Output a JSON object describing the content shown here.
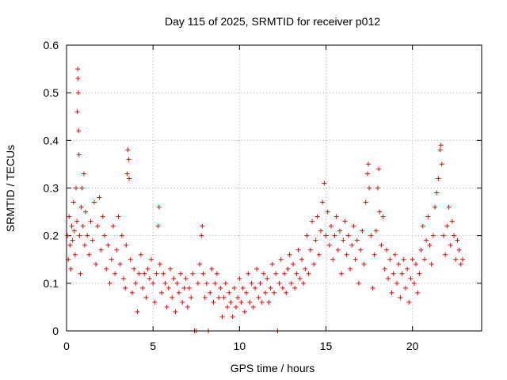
{
  "chart_data": {
    "type": "scatter",
    "title": "Day 115 of 2025, SRMTID for receiver p012",
    "xlabel": "GPS time / hours",
    "ylabel": "SRMTID / TECUs",
    "xlim": [
      0,
      24
    ],
    "ylim": [
      0,
      0.6
    ],
    "xticks": [
      0,
      5,
      10,
      15,
      20
    ],
    "yticks": [
      0,
      0.1,
      0.2,
      0.3,
      0.4,
      0.5,
      0.6
    ],
    "xtick_labels": [
      "0",
      "5",
      "10",
      "15",
      "20"
    ],
    "ytick_labels": [
      "0",
      "0.1",
      "0.2",
      "0.3",
      "0.4",
      "0.5",
      "0.6"
    ],
    "grid": true,
    "marker": "+",
    "color": "#ff0000",
    "series": [
      {
        "name": "SRMTID",
        "points": [
          [
            0.05,
            0.2
          ],
          [
            0.1,
            0.15
          ],
          [
            0.15,
            0.24
          ],
          [
            0.2,
            0.18
          ],
          [
            0.25,
            0.13
          ],
          [
            0.3,
            0.22
          ],
          [
            0.35,
            0.19
          ],
          [
            0.4,
            0.27
          ],
          [
            0.45,
            0.21
          ],
          [
            0.5,
            0.16
          ],
          [
            0.55,
            0.3
          ],
          [
            0.6,
            0.23
          ],
          [
            0.62,
            0.46
          ],
          [
            0.65,
            0.55
          ],
          [
            0.66,
            0.53
          ],
          [
            0.68,
            0.5
          ],
          [
            0.7,
            0.42
          ],
          [
            0.72,
            0.37
          ],
          [
            0.75,
            0.2
          ],
          [
            0.8,
            0.12
          ],
          [
            0.85,
            0.26
          ],
          [
            0.9,
            0.3
          ],
          [
            0.95,
            0.22
          ],
          [
            1.0,
            0.33
          ],
          [
            1.05,
            0.18
          ],
          [
            1.1,
            0.25
          ],
          [
            1.2,
            0.2
          ],
          [
            1.3,
            0.16
          ],
          [
            1.4,
            0.23
          ],
          [
            1.5,
            0.19
          ],
          [
            1.6,
            0.27
          ],
          [
            1.7,
            0.14
          ],
          [
            1.8,
            0.22
          ],
          [
            1.9,
            0.28
          ],
          [
            2.0,
            0.17
          ],
          [
            2.1,
            0.24
          ],
          [
            2.2,
            0.2
          ],
          [
            2.3,
            0.13
          ],
          [
            2.4,
            0.18
          ],
          [
            2.5,
            0.1
          ],
          [
            2.6,
            0.15
          ],
          [
            2.7,
            0.22
          ],
          [
            2.8,
            0.12
          ],
          [
            2.9,
            0.17
          ],
          [
            3.0,
            0.24
          ],
          [
            3.1,
            0.14
          ],
          [
            3.2,
            0.2
          ],
          [
            3.3,
            0.11
          ],
          [
            3.4,
            0.09
          ],
          [
            3.45,
            0.18
          ],
          [
            3.5,
            0.33
          ],
          [
            3.55,
            0.38
          ],
          [
            3.6,
            0.36
          ],
          [
            3.62,
            0.32
          ],
          [
            3.7,
            0.15
          ],
          [
            3.8,
            0.08
          ],
          [
            3.9,
            0.13
          ],
          [
            4.0,
            0.1
          ],
          [
            4.1,
            0.04
          ],
          [
            4.2,
            0.12
          ],
          [
            4.3,
            0.16
          ],
          [
            4.4,
            0.09
          ],
          [
            4.5,
            0.12
          ],
          [
            4.6,
            0.07
          ],
          [
            4.7,
            0.13
          ],
          [
            4.8,
            0.11
          ],
          [
            4.9,
            0.15
          ],
          [
            5.0,
            0.1
          ],
          [
            5.1,
            0.06
          ],
          [
            5.2,
            0.12
          ],
          [
            5.3,
            0.22
          ],
          [
            5.35,
            0.26
          ],
          [
            5.4,
            0.14
          ],
          [
            5.5,
            0.08
          ],
          [
            5.6,
            0.12
          ],
          [
            5.7,
            0.1
          ],
          [
            5.8,
            0.05
          ],
          [
            5.9,
            0.09
          ],
          [
            6.0,
            0.13
          ],
          [
            6.1,
            0.07
          ],
          [
            6.2,
            0.11
          ],
          [
            6.3,
            0.04
          ],
          [
            6.4,
            0.1
          ],
          [
            6.5,
            0.08
          ],
          [
            6.6,
            0.12
          ],
          [
            6.7,
            0.06
          ],
          [
            6.8,
            0.09
          ],
          [
            6.9,
            0.11
          ],
          [
            7.0,
            0.05
          ],
          [
            7.1,
            0.09
          ],
          [
            7.2,
            0.07
          ],
          [
            7.3,
            0.12
          ],
          [
            7.4,
            0.0
          ],
          [
            7.5,
            0.0
          ],
          [
            7.6,
            0.1
          ],
          [
            7.7,
            0.14
          ],
          [
            7.8,
            0.2
          ],
          [
            7.85,
            0.22
          ],
          [
            7.9,
            0.12
          ],
          [
            8.0,
            0.07
          ],
          [
            8.1,
            0.1
          ],
          [
            8.2,
            0.0
          ],
          [
            8.3,
            0.08
          ],
          [
            8.4,
            0.13
          ],
          [
            8.5,
            0.06
          ],
          [
            8.6,
            0.1
          ],
          [
            8.7,
            0.12
          ],
          [
            8.8,
            0.07
          ],
          [
            8.9,
            0.09
          ],
          [
            9.0,
            0.03
          ],
          [
            9.1,
            0.07
          ],
          [
            9.2,
            0.1
          ],
          [
            9.3,
            0.05
          ],
          [
            9.4,
            0.08
          ],
          [
            9.5,
            0.06
          ],
          [
            9.6,
            0.03
          ],
          [
            9.7,
            0.09
          ],
          [
            9.8,
            0.05
          ],
          [
            9.9,
            0.07
          ],
          [
            10.0,
            0.11
          ],
          [
            10.1,
            0.06
          ],
          [
            10.2,
            0.09
          ],
          [
            10.3,
            0.04
          ],
          [
            10.4,
            0.08
          ],
          [
            10.5,
            0.12
          ],
          [
            10.6,
            0.06
          ],
          [
            10.7,
            0.1
          ],
          [
            10.8,
            0.05
          ],
          [
            10.9,
            0.09
          ],
          [
            11.0,
            0.13
          ],
          [
            11.1,
            0.07
          ],
          [
            11.2,
            0.1
          ],
          [
            11.3,
            0.06
          ],
          [
            11.4,
            0.12
          ],
          [
            11.5,
            0.08
          ],
          [
            11.6,
            0.11
          ],
          [
            11.7,
            0.06
          ],
          [
            11.8,
            0.09
          ],
          [
            11.9,
            0.14
          ],
          [
            12.0,
            0.08
          ],
          [
            12.1,
            0.12
          ],
          [
            12.2,
            0.0
          ],
          [
            12.3,
            0.1
          ],
          [
            12.4,
            0.15
          ],
          [
            12.5,
            0.09
          ],
          [
            12.6,
            0.12
          ],
          [
            12.7,
            0.08
          ],
          [
            12.8,
            0.13
          ],
          [
            12.9,
            0.16
          ],
          [
            13.0,
            0.1
          ],
          [
            13.1,
            0.14
          ],
          [
            13.2,
            0.09
          ],
          [
            13.3,
            0.12
          ],
          [
            13.4,
            0.17
          ],
          [
            13.5,
            0.11
          ],
          [
            13.6,
            0.15
          ],
          [
            13.7,
            0.1
          ],
          [
            13.8,
            0.13
          ],
          [
            13.9,
            0.2
          ],
          [
            14.0,
            0.12
          ],
          [
            14.1,
            0.17
          ],
          [
            14.2,
            0.23
          ],
          [
            14.3,
            0.14
          ],
          [
            14.4,
            0.19
          ],
          [
            14.5,
            0.24
          ],
          [
            14.6,
            0.16
          ],
          [
            14.7,
            0.21
          ],
          [
            14.8,
            0.27
          ],
          [
            14.9,
            0.31
          ],
          [
            15.0,
            0.2
          ],
          [
            15.1,
            0.25
          ],
          [
            15.2,
            0.18
          ],
          [
            15.3,
            0.22
          ],
          [
            15.4,
            0.15
          ],
          [
            15.5,
            0.2
          ],
          [
            15.6,
            0.24
          ],
          [
            15.7,
            0.17
          ],
          [
            15.8,
            0.21
          ],
          [
            15.9,
            0.12
          ],
          [
            16.0,
            0.19
          ],
          [
            16.1,
            0.23
          ],
          [
            16.2,
            0.16
          ],
          [
            16.3,
            0.2
          ],
          [
            16.4,
            0.13
          ],
          [
            16.5,
            0.18
          ],
          [
            16.6,
            0.22
          ],
          [
            16.7,
            0.15
          ],
          [
            16.8,
            0.19
          ],
          [
            16.9,
            0.1
          ],
          [
            17.0,
            0.17
          ],
          [
            17.1,
            0.21
          ],
          [
            17.2,
            0.14
          ],
          [
            17.3,
            0.27
          ],
          [
            17.4,
            0.33
          ],
          [
            17.45,
            0.35
          ],
          [
            17.5,
            0.3
          ],
          [
            17.6,
            0.2
          ],
          [
            17.7,
            0.09
          ],
          [
            17.8,
            0.16
          ],
          [
            17.9,
            0.21
          ],
          [
            18.0,
            0.3
          ],
          [
            18.05,
            0.34
          ],
          [
            18.1,
            0.25
          ],
          [
            18.2,
            0.18
          ],
          [
            18.3,
            0.24
          ],
          [
            18.4,
            0.13
          ],
          [
            18.5,
            0.17
          ],
          [
            18.6,
            0.11
          ],
          [
            18.7,
            0.15
          ],
          [
            18.8,
            0.08
          ],
          [
            18.9,
            0.12
          ],
          [
            19.0,
            0.16
          ],
          [
            19.1,
            0.1
          ],
          [
            19.2,
            0.14
          ],
          [
            19.3,
            0.07
          ],
          [
            19.4,
            0.12
          ],
          [
            19.5,
            0.15
          ],
          [
            19.6,
            0.09
          ],
          [
            19.7,
            0.13
          ],
          [
            19.8,
            0.06
          ],
          [
            19.9,
            0.11
          ],
          [
            20.0,
            0.15
          ],
          [
            20.1,
            0.1
          ],
          [
            20.2,
            0.14
          ],
          [
            20.3,
            0.08
          ],
          [
            20.4,
            0.12
          ],
          [
            20.5,
            0.17
          ],
          [
            20.6,
            0.22
          ],
          [
            20.7,
            0.15
          ],
          [
            20.8,
            0.19
          ],
          [
            20.9,
            0.24
          ],
          [
            21.0,
            0.18
          ],
          [
            21.1,
            0.14
          ],
          [
            21.2,
            0.2
          ],
          [
            21.3,
            0.26
          ],
          [
            21.4,
            0.29
          ],
          [
            21.5,
            0.32
          ],
          [
            21.6,
            0.38
          ],
          [
            21.65,
            0.39
          ],
          [
            21.7,
            0.35
          ],
          [
            21.8,
            0.2
          ],
          [
            21.9,
            0.16
          ],
          [
            22.0,
            0.22
          ],
          [
            22.1,
            0.26
          ],
          [
            22.2,
            0.18
          ],
          [
            22.3,
            0.23
          ],
          [
            22.4,
            0.2
          ],
          [
            22.5,
            0.15
          ],
          [
            22.6,
            0.19
          ],
          [
            22.7,
            0.17
          ],
          [
            22.8,
            0.14
          ],
          [
            22.9,
            0.15
          ]
        ]
      }
    ]
  }
}
